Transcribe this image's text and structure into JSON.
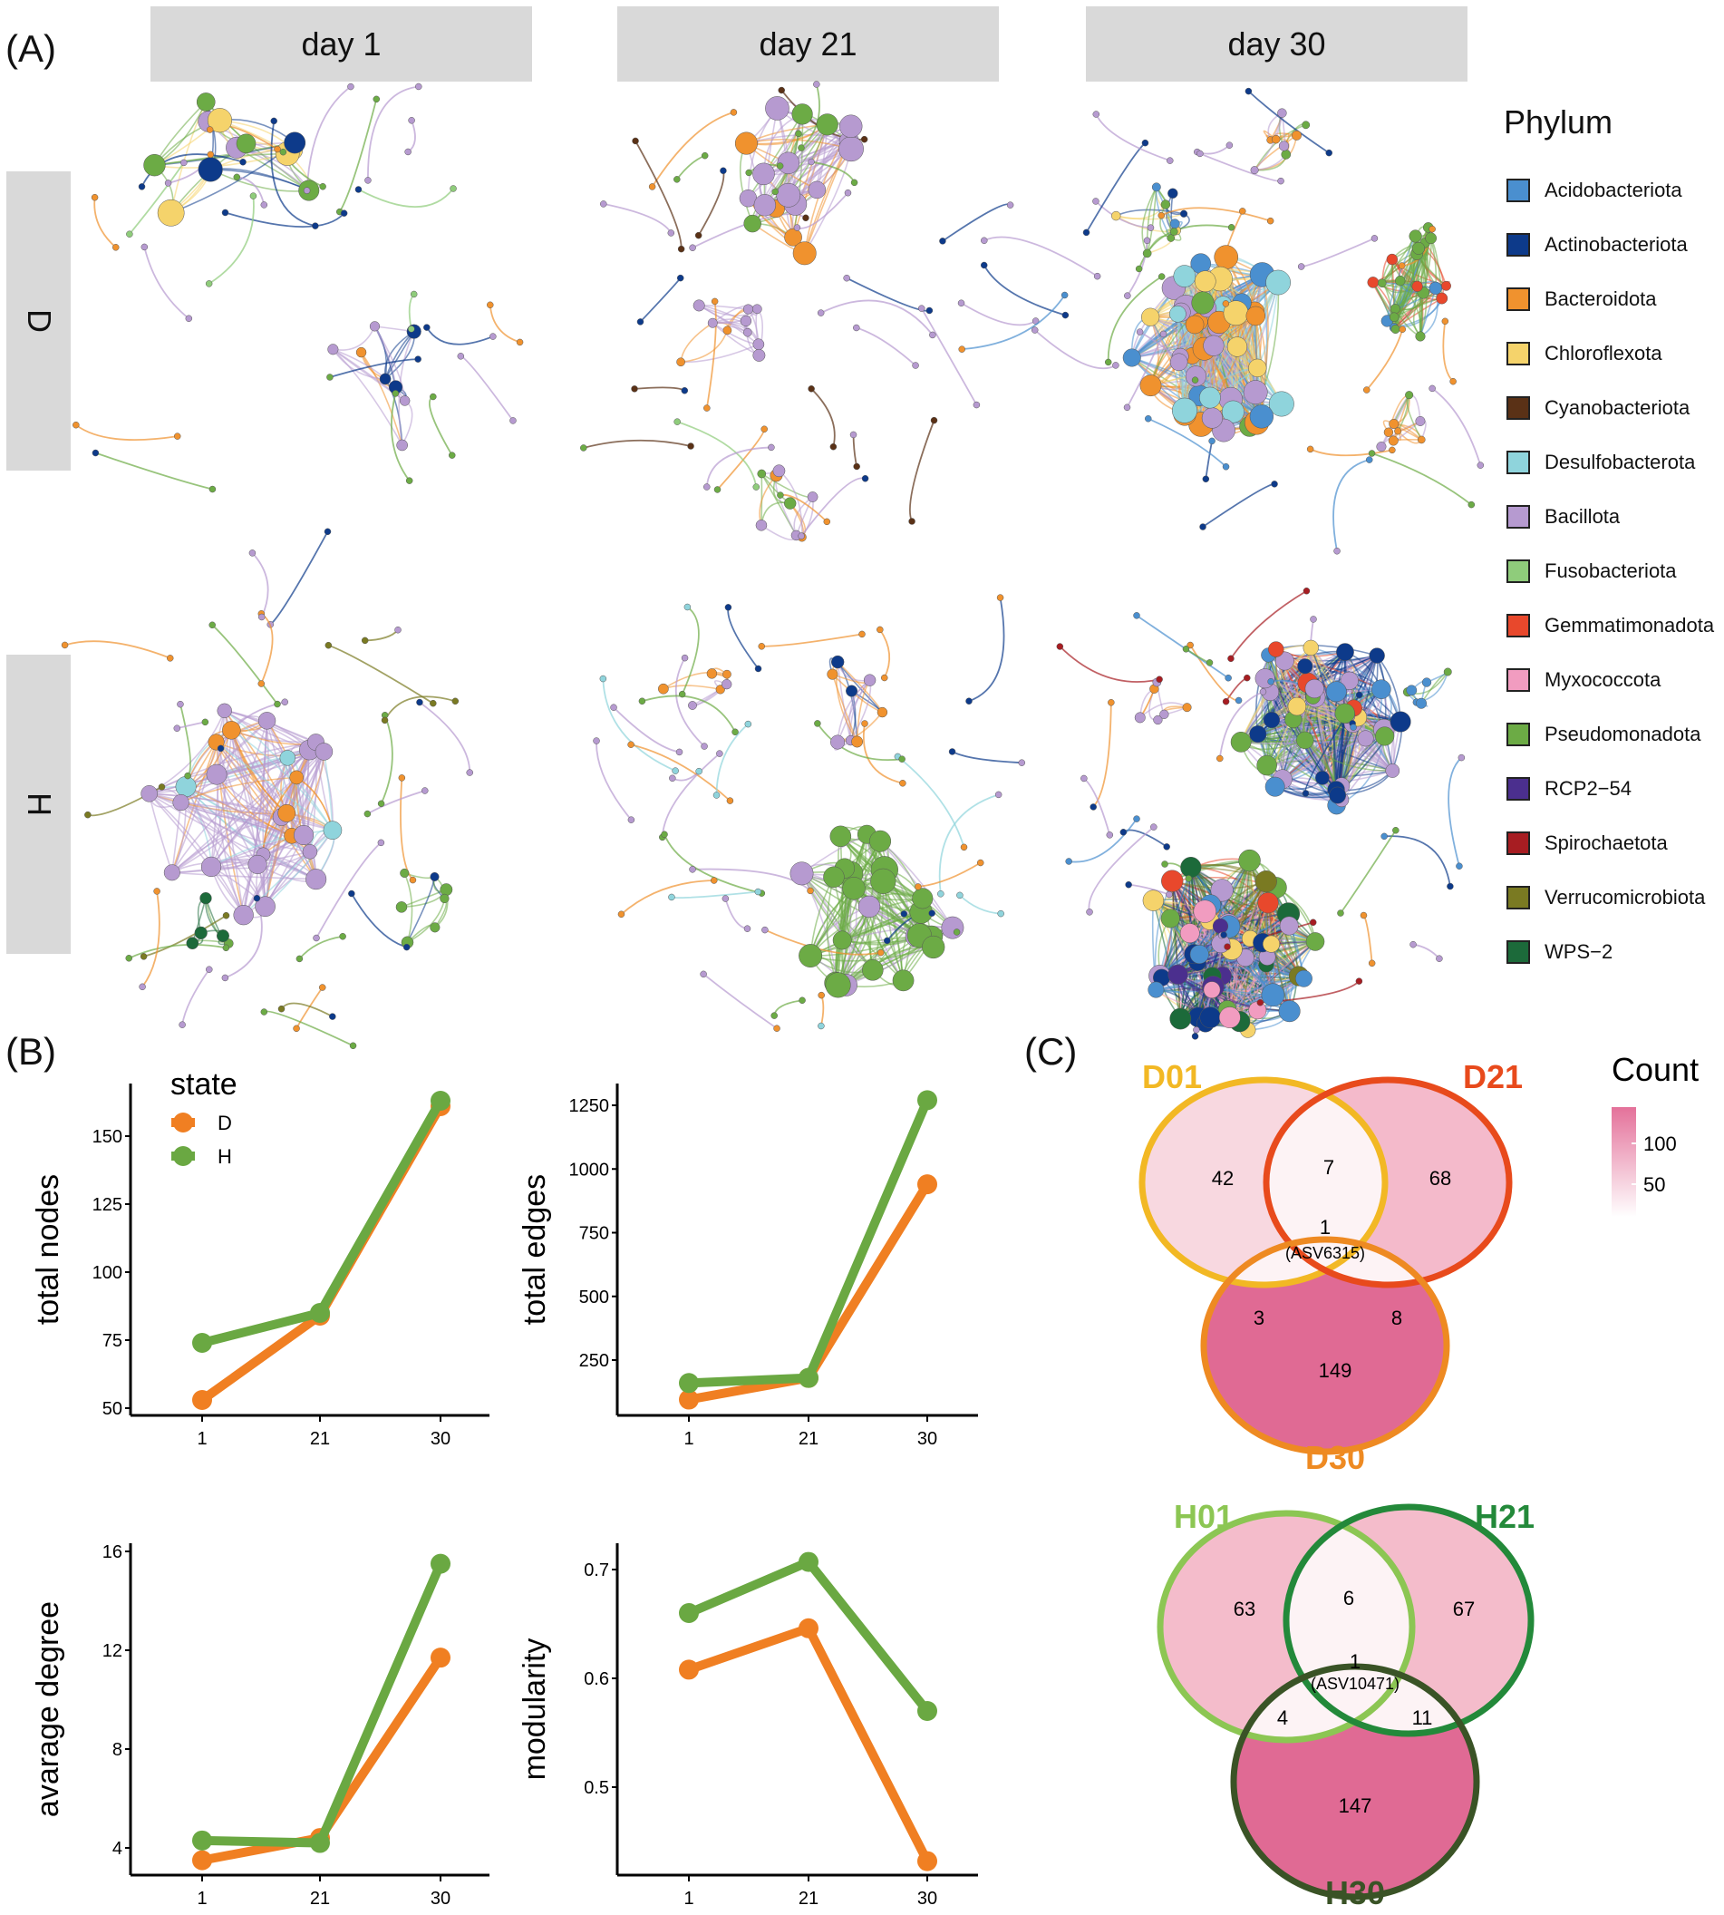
{
  "panels": {
    "a": "(A)",
    "b": "(B)",
    "c": "(C)"
  },
  "columns": [
    "day 1",
    "day 21",
    "day 30"
  ],
  "rows": [
    "D",
    "H"
  ],
  "phylum_legend": {
    "title": "Phylum",
    "items": [
      {
        "label": "Acidobacteriota",
        "color": "#4a8fcf"
      },
      {
        "label": "Actinobacteriota",
        "color": "#0d3a8a"
      },
      {
        "label": "Bacteroidota",
        "color": "#f0922e"
      },
      {
        "label": "Chloroflexota",
        "color": "#f5d36b"
      },
      {
        "label": "Cyanobacteriota",
        "color": "#5a3116"
      },
      {
        "label": "Desulfobacterota",
        "color": "#8fd4dc"
      },
      {
        "label": "Bacillota",
        "color": "#b69ad0"
      },
      {
        "label": "Fusobacteriota",
        "color": "#8fcc7b"
      },
      {
        "label": "Gemmatimonadota",
        "color": "#e8482c"
      },
      {
        "label": "Myxococcota",
        "color": "#f19cc0"
      },
      {
        "label": "Pseudomonadota",
        "color": "#6cab45"
      },
      {
        "label": "RCP2−54",
        "color": "#4b2f8e"
      },
      {
        "label": "Spirochaetota",
        "color": "#a71d22"
      },
      {
        "label": "Verrucomicrobiota",
        "color": "#7a7a22"
      },
      {
        "label": "WPS−2",
        "color": "#1c6a3a"
      }
    ]
  },
  "state_legend": {
    "title": "state",
    "items": [
      {
        "label": "D",
        "color": "#f07f22"
      },
      {
        "label": "H",
        "color": "#6aa842"
      }
    ]
  },
  "chart_data": [
    {
      "type": "line",
      "ylabel": "total nodes",
      "categories": [
        "1",
        "21",
        "30"
      ],
      "yticks": [
        50,
        75,
        100,
        125,
        150
      ],
      "ylim": [
        47,
        168
      ],
      "series": [
        {
          "name": "D",
          "values": [
            53,
            84,
            161
          ]
        },
        {
          "name": "H",
          "values": [
            74,
            85,
            163
          ]
        }
      ]
    },
    {
      "type": "line",
      "ylabel": "total edges",
      "categories": [
        "1",
        "21",
        "30"
      ],
      "yticks": [
        250,
        500,
        750,
        1000,
        1250
      ],
      "ylim": [
        60,
        1330
      ],
      "series": [
        {
          "name": "D",
          "values": [
            95,
            180,
            940
          ]
        },
        {
          "name": "H",
          "values": [
            160,
            180,
            1270
          ]
        }
      ]
    },
    {
      "type": "line",
      "ylabel": "avarage degree",
      "categories": [
        "1",
        "21",
        "30"
      ],
      "yticks": [
        4,
        8,
        12,
        16
      ],
      "ylim": [
        3.0,
        16.3
      ],
      "series": [
        {
          "name": "D",
          "values": [
            3.5,
            4.4,
            11.7
          ]
        },
        {
          "name": "H",
          "values": [
            4.3,
            4.2,
            15.5
          ]
        }
      ]
    },
    {
      "type": "line",
      "ylabel": "modularity",
      "categories": [
        "1",
        "21",
        "30"
      ],
      "yticks": [
        0.5,
        0.6,
        0.7
      ],
      "ylim": [
        0.42,
        0.72
      ],
      "series": [
        {
          "name": "D",
          "values": [
            0.608,
            0.646,
            0.432
          ]
        },
        {
          "name": "H",
          "values": [
            0.66,
            0.707,
            0.57
          ]
        }
      ]
    }
  ],
  "venn": {
    "count_legend": {
      "title": "Count",
      "ticks": [
        "100",
        "50"
      ]
    },
    "D": {
      "sets": [
        {
          "label": "D01",
          "color": "#f2b824"
        },
        {
          "label": "D21",
          "color": "#e84a1c"
        },
        {
          "label": "D30",
          "color": "#ee8a22"
        }
      ],
      "regions": {
        "only1": "42",
        "only2": "68",
        "only3": "149",
        "r12": "7",
        "r13": "3",
        "r23": "8",
        "all": "1",
        "all_id": "(ASV6315)"
      }
    },
    "H": {
      "sets": [
        {
          "label": "H01",
          "color": "#8cc653"
        },
        {
          "label": "H21",
          "color": "#23893a"
        },
        {
          "label": "H30",
          "color": "#3a5326"
        }
      ],
      "regions": {
        "only1": "63",
        "only2": "67",
        "only3": "147",
        "r12": "6",
        "r13": "4",
        "r23": "11",
        "all": "1",
        "all_id": "(ASV10471)"
      }
    }
  }
}
